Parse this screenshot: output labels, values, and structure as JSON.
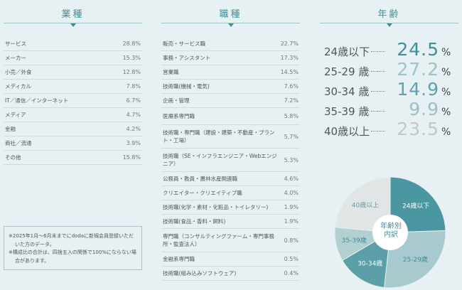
{
  "industry": {
    "title": "業種",
    "rows": [
      {
        "label": "サービス",
        "value": "28.8%"
      },
      {
        "label": "メーカー",
        "value": "15.3%"
      },
      {
        "label": "小売／外食",
        "value": "12.8%"
      },
      {
        "label": "メディカル",
        "value": "7.8%"
      },
      {
        "label": "IT／通信／インターネット",
        "value": "6.7%"
      },
      {
        "label": "メディア",
        "value": "4.7%"
      },
      {
        "label": "金融",
        "value": "4.2%"
      },
      {
        "label": "商社／流通",
        "value": "3.9%"
      },
      {
        "label": "その他",
        "value": "15.8%"
      }
    ]
  },
  "occupation": {
    "title": "職種",
    "rows": [
      {
        "label": "販売・サービス職",
        "value": "22.7%"
      },
      {
        "label": "事務・アシスタント",
        "value": "17.3%"
      },
      {
        "label": "営業職",
        "value": "14.5%"
      },
      {
        "label": "技術職(機械・電気)",
        "value": "7.6%"
      },
      {
        "label": "企画・管理",
        "value": "7.2%"
      },
      {
        "label": "医療系専門職",
        "value": "5.8%"
      },
      {
        "label": "技術職・専門職（建設・建築・不動産・プラント・工場）",
        "value": "5.7%"
      },
      {
        "label": "技術職（SE・インフラエンジニア・Webエンジニア）",
        "value": "5.3%"
      },
      {
        "label": "公務員・教員・農林水産関連職",
        "value": "4.6%"
      },
      {
        "label": "クリエイター・クリエイティブ職",
        "value": "4.0%"
      },
      {
        "label": "技術職(化学・素材・化粧品・トイレタリー)",
        "value": "1.9%"
      },
      {
        "label": "技術職(食品・香料・飼料)",
        "value": "1.9%"
      },
      {
        "label": "専門職（コンサルティングファーム・専門事務所・監査法人）",
        "value": "0.8%"
      },
      {
        "label": "金融系専門職",
        "value": "0.5%"
      },
      {
        "label": "技術職(組み込みソフトウェア)",
        "value": "0.4%"
      }
    ]
  },
  "notes": [
    "※2025年1月～6月末までにdodaに新規会員登録いただいた方のデータ。",
    "※構成比の合計は、四捨五入の関係で100%にならない場合があります。"
  ],
  "chart_data": {
    "type": "pie",
    "title": "年齢",
    "center_label": "年齢別内訳",
    "unit": "%",
    "categories": [
      "24歳以下",
      "25-29歳",
      "30-34歳",
      "35-39歳",
      "40歳以上"
    ],
    "list_labels": [
      "24歳以下",
      "25-29 歳",
      "30-34 歳",
      "35-39 歳",
      "40歳以上"
    ],
    "values": [
      24.5,
      27.2,
      14.9,
      9.9,
      23.5
    ],
    "value_labels": [
      "24.5",
      "27.2",
      "14.9",
      "9.9",
      "23.5"
    ],
    "colors": [
      "#4a96a1",
      "#a8c9ce",
      "#5d9fa8",
      "#b2cfd2",
      "#e2e5e6"
    ],
    "number_colors": [
      "#3d8f99",
      "#9cc3c8",
      "#5ea3ab",
      "#9cc0c4",
      "#c2c8ca"
    ],
    "label_colors": [
      "#ffffff",
      "#3f8f99",
      "#ffffff",
      "#3f8f99",
      "#5d9fa8"
    ]
  }
}
